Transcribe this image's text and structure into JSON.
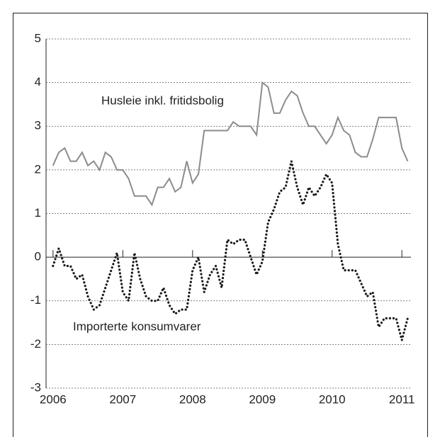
{
  "chart_data": {
    "type": "line",
    "x": [
      2006,
      2006.083,
      2006.167,
      2006.25,
      2006.333,
      2006.417,
      2006.5,
      2006.583,
      2006.667,
      2006.75,
      2006.833,
      2006.917,
      2007,
      2007.083,
      2007.167,
      2007.25,
      2007.333,
      2007.417,
      2007.5,
      2007.583,
      2007.667,
      2007.75,
      2007.833,
      2007.917,
      2008,
      2008.083,
      2008.167,
      2008.25,
      2008.333,
      2008.417,
      2008.5,
      2008.583,
      2008.667,
      2008.75,
      2008.833,
      2008.917,
      2009,
      2009.083,
      2009.167,
      2009.25,
      2009.333,
      2009.417,
      2009.5,
      2009.583,
      2009.667,
      2009.75,
      2009.833,
      2009.917,
      2010,
      2010.083,
      2010.167,
      2010.25,
      2010.333,
      2010.417,
      2010.5,
      2010.583,
      2010.667,
      2010.75,
      2010.833,
      2010.917,
      2011,
      2011.083
    ],
    "series": [
      {
        "name": "Husleie inkl. fritidsbolig",
        "color": "#8c8c8c",
        "style": "solid",
        "values": [
          2.1,
          2.4,
          2.5,
          2.2,
          2.2,
          2.4,
          2.1,
          2.2,
          2.0,
          2.4,
          2.3,
          2.0,
          2.0,
          1.8,
          1.4,
          1.4,
          1.4,
          1.2,
          1.6,
          1.6,
          1.8,
          1.5,
          1.6,
          2.2,
          1.7,
          1.9,
          2.9,
          2.9,
          2.9,
          2.9,
          2.9,
          3.1,
          3.0,
          3.0,
          3.0,
          2.8,
          4.0,
          3.9,
          3.3,
          3.3,
          3.6,
          3.8,
          3.7,
          3.3,
          3.0,
          3.0,
          2.8,
          2.6,
          2.8,
          3.2,
          2.9,
          2.8,
          2.4,
          2.3,
          2.3,
          2.7,
          3.2,
          3.2,
          3.2,
          3.2,
          2.5,
          2.2
        ]
      },
      {
        "name": "Importerte konsumvarer",
        "color": "#1a1a1a",
        "style": "dotted",
        "values": [
          -0.2,
          0.2,
          -0.2,
          -0.2,
          -0.5,
          -0.4,
          -0.9,
          -1.2,
          -1.1,
          -0.7,
          -0.3,
          0.1,
          -0.8,
          -1.0,
          0.1,
          -0.5,
          -0.9,
          -1.0,
          -1.0,
          -0.7,
          -1.1,
          -1.3,
          -1.2,
          -1.2,
          -0.3,
          0.0,
          -0.8,
          -0.4,
          -0.2,
          -0.7,
          0.4,
          0.3,
          0.4,
          0.4,
          0.0,
          -0.4,
          -0.1,
          0.8,
          1.1,
          1.5,
          1.6,
          2.2,
          1.6,
          1.2,
          1.6,
          1.4,
          1.6,
          1.9,
          1.7,
          0.3,
          -0.3,
          -0.3,
          -0.3,
          -0.6,
          -0.9,
          -0.8,
          -1.6,
          -1.4,
          -1.4,
          -1.4,
          -1.9,
          -1.4
        ]
      }
    ],
    "xlim": [
      2005.9,
      2011.13
    ],
    "xticks": [
      2006,
      2007,
      2008,
      2009,
      2010,
      2011
    ],
    "ylim": [
      -3,
      5
    ],
    "yticks": [
      -3,
      -2,
      -1,
      0,
      1,
      2,
      3,
      4,
      5
    ],
    "grid": true
  }
}
